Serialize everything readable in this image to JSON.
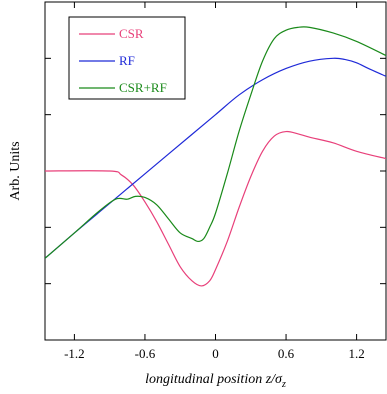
{
  "chart_data": {
    "type": "line",
    "title": "",
    "xlabel": "longitudinal position z/σ",
    "xlabel_subscript": "z",
    "ylabel": "Arb. Units",
    "xlim": [
      -1.45,
      1.45
    ],
    "ylim": [
      -3,
      3
    ],
    "x_ticks": [
      -1.2,
      -0.6,
      0,
      0.6,
      1.2
    ],
    "x_tick_labels": [
      "-1.2",
      "-0.6",
      "0",
      "0.6",
      "1.2"
    ],
    "y_ticks": [
      -2,
      -1,
      0,
      1,
      2
    ],
    "y_tick_labels_shown": false,
    "grid": false,
    "legend_position": "top-left",
    "series": [
      {
        "name": "CSR",
        "color": "#e8407a",
        "x": [
          -1.45,
          -0.9,
          -0.8,
          -0.7,
          -0.6,
          -0.5,
          -0.4,
          -0.3,
          -0.2,
          -0.12,
          -0.05,
          0.0,
          0.1,
          0.2,
          0.3,
          0.4,
          0.5,
          0.6,
          0.7,
          0.8,
          1.0,
          1.2,
          1.45
        ],
        "y": [
          0.0,
          0.0,
          -0.07,
          -0.25,
          -0.55,
          -0.9,
          -1.3,
          -1.7,
          -1.95,
          -2.04,
          -1.95,
          -1.75,
          -1.25,
          -0.65,
          -0.1,
          0.35,
          0.62,
          0.7,
          0.66,
          0.6,
          0.5,
          0.35,
          0.22
        ]
      },
      {
        "name": "RF",
        "color": "#1f2ad8",
        "x": [
          -1.45,
          -1.2,
          -1.0,
          -0.8,
          -0.6,
          -0.4,
          -0.2,
          0.0,
          0.2,
          0.4,
          0.6,
          0.8,
          1.0,
          1.1,
          1.2,
          1.3,
          1.45
        ],
        "y": [
          -1.55,
          -1.1,
          -0.75,
          -0.4,
          -0.05,
          0.3,
          0.65,
          1.0,
          1.35,
          1.62,
          1.82,
          1.95,
          2.0,
          1.98,
          1.92,
          1.82,
          1.68
        ]
      },
      {
        "name": "CSR+RF",
        "color": "#1a8a1a",
        "x": [
          -1.45,
          -1.2,
          -1.0,
          -0.85,
          -0.75,
          -0.68,
          -0.6,
          -0.5,
          -0.4,
          -0.3,
          -0.2,
          -0.15,
          -0.1,
          -0.05,
          0.0,
          0.1,
          0.2,
          0.3,
          0.4,
          0.5,
          0.6,
          0.7,
          0.8,
          1.0,
          1.2,
          1.45
        ],
        "y": [
          -1.55,
          -1.1,
          -0.73,
          -0.5,
          -0.5,
          -0.45,
          -0.47,
          -0.6,
          -0.85,
          -1.1,
          -1.2,
          -1.25,
          -1.2,
          -1.0,
          -0.75,
          -0.05,
          0.7,
          1.35,
          1.95,
          2.35,
          2.5,
          2.55,
          2.55,
          2.45,
          2.3,
          2.05
        ]
      }
    ]
  }
}
